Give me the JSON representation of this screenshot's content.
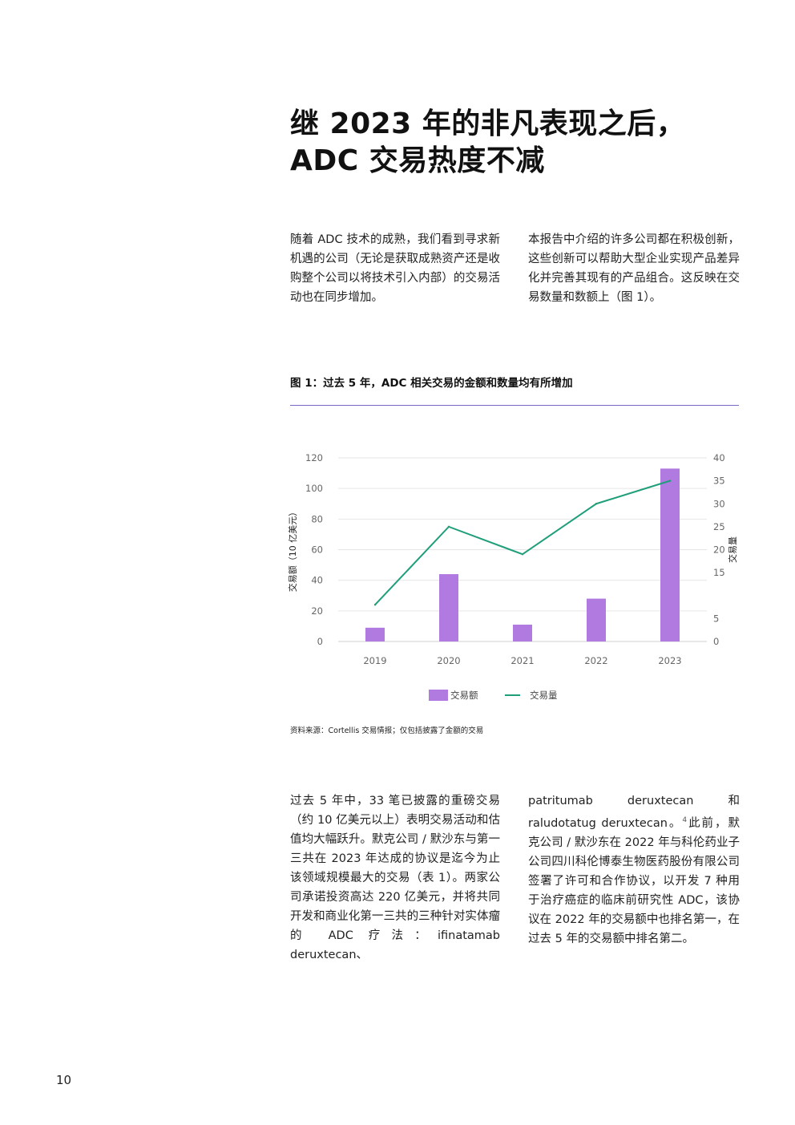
{
  "heading": "继 2023 年的非凡表现之后，ADC 交易热度不减",
  "intro": {
    "left": "随着 ADC 技术的成熟，我们看到寻求新机遇的公司（无论是获取成熟资产还是收购整个公司以将技术引入内部）的交易活动也在同步增加。",
    "right": "本报告中介绍的许多公司都在积极创新，这些创新可以帮助大型企业实现产品差异化并完善其现有的产品组合。这反映在交易数量和数额上（图 1）。"
  },
  "figure": {
    "title": "图 1：过去 5 年，ADC 相关交易的金额和数量均有所增加",
    "source": "资料来源：Cortellis 交易情报；仅包括披露了金额的交易"
  },
  "chart_data": {
    "type": "bar+line",
    "categories": [
      "2019",
      "2020",
      "2021",
      "2022",
      "2023"
    ],
    "series": [
      {
        "name": "交易额",
        "type": "bar",
        "axis": "left",
        "color": "#b07ae0",
        "values": [
          9,
          44,
          11,
          28,
          113
        ]
      },
      {
        "name": "交易量",
        "type": "line",
        "axis": "right",
        "color": "#1f9e7a",
        "values": [
          8,
          25,
          19,
          30,
          35
        ]
      }
    ],
    "ylabel_left": "交易额（10 亿美元）",
    "ylabel_right": "交易量",
    "ylim_left": [
      0,
      120
    ],
    "yticks_left": [
      "0",
      "20",
      "40",
      "60",
      "80",
      "100",
      "120"
    ],
    "ylim_right": [
      0,
      40
    ],
    "yticks_right": [
      "0",
      "5",
      "15",
      "20",
      "25",
      "30",
      "35",
      "40"
    ],
    "grid": true,
    "legend_position": "bottom"
  },
  "body": {
    "left": "过去 5 年中，33 笔已披露的重磅交易（约 10 亿美元以上）表明交易活动和估值均大幅跃升。默克公司 / 默沙东与第一三共在 2023 年达成的协议是迄今为止该领域规模最大的交易（表 1）。两家公司承诺投资高达 220 亿美元，并将共同开发和商业化第一三共的三种针对实体瘤的 ADC 疗法：ifinatamab deruxtecan、",
    "right_before": "patritumab deruxtecan 和 raludotatug deruxtecan。",
    "right_ref": "4",
    "right_after": "此前，默克公司 / 默沙东在 2022 年与科伦药业子公司四川科伦博泰生物医药股份有限公司签署了许可和合作协议，以开发 7 种用于治疗癌症的临床前研究性 ADC，该协议在 2022 年的交易额中也排名第一，在过去 5 年的交易额中排名第二。"
  },
  "page_number": "10"
}
